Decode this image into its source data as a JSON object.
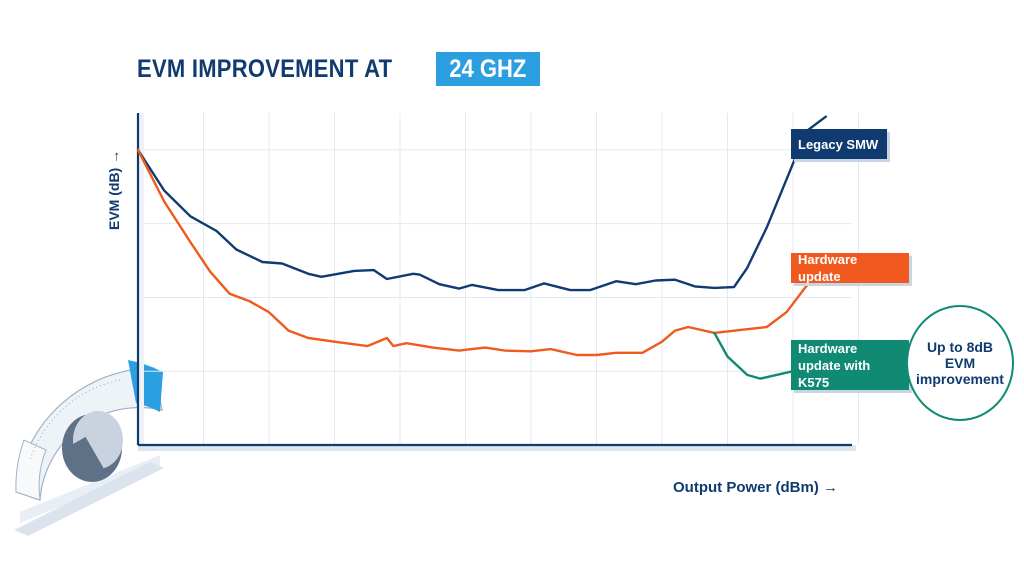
{
  "title": {
    "prefix": "EVM IMPROVEMENT AT",
    "highlight": "24 GHZ"
  },
  "colors": {
    "legacy": "#0f3b70",
    "hardware_update": "#f05a1e",
    "k575": "#118a74",
    "accent": "#2b9fe0",
    "grid": "#e3e9f1"
  },
  "icons": {
    "arrow": "→",
    "dial": "dial-knob-icon"
  },
  "callout": "Up to 8dB EVM improvement",
  "chart_data": {
    "type": "line",
    "title": "EVM IMPROVEMENT AT 24 GHZ",
    "xlabel": "Output Power (dBm)",
    "ylabel": "EVM (dB)",
    "xlim": [
      0,
      11
    ],
    "ylim": [
      0,
      4.5
    ],
    "grid": true,
    "axis_ticks_labeled": false,
    "series": [
      {
        "name": "Legacy SMW",
        "x": [
          0,
          0.4,
          0.8,
          1.2,
          1.5,
          1.9,
          2.2,
          2.6,
          2.8,
          3.3,
          3.6,
          3.8,
          4.2,
          4.3,
          4.6,
          4.9,
          5.1,
          5.5,
          5.9,
          6.2,
          6.6,
          6.9,
          7.3,
          7.6,
          7.9,
          8.2,
          8.5,
          8.8,
          9.1,
          9.3,
          9.6,
          9.9,
          10.2,
          10.5
        ],
        "values": [
          4.0,
          3.45,
          3.1,
          2.9,
          2.65,
          2.48,
          2.46,
          2.32,
          2.28,
          2.36,
          2.37,
          2.25,
          2.32,
          2.31,
          2.18,
          2.12,
          2.17,
          2.1,
          2.1,
          2.19,
          2.1,
          2.1,
          2.22,
          2.18,
          2.23,
          2.24,
          2.15,
          2.13,
          2.14,
          2.4,
          2.95,
          3.6,
          4.25,
          4.45
        ]
      },
      {
        "name": "Hardware update",
        "x": [
          0,
          0.4,
          0.8,
          1.1,
          1.4,
          1.7,
          2.0,
          2.3,
          2.6,
          3.0,
          3.5,
          3.8,
          3.9,
          4.1,
          4.5,
          4.9,
          5.3,
          5.6,
          6.0,
          6.3,
          6.7,
          7.0,
          7.3,
          7.7,
          8.0,
          8.2,
          8.4,
          8.8,
          9.2,
          9.6,
          9.9,
          10.2,
          10.5
        ],
        "values": [
          4.0,
          3.3,
          2.75,
          2.35,
          2.05,
          1.95,
          1.8,
          1.55,
          1.45,
          1.4,
          1.34,
          1.45,
          1.34,
          1.38,
          1.32,
          1.28,
          1.32,
          1.28,
          1.27,
          1.3,
          1.22,
          1.22,
          1.25,
          1.25,
          1.4,
          1.55,
          1.6,
          1.52,
          1.56,
          1.6,
          1.8,
          2.15,
          2.45
        ]
      },
      {
        "name": "Hardware update with K575",
        "x": [
          8.8,
          9.0,
          9.3,
          9.5,
          10.0,
          10.5
        ],
        "values": [
          1.52,
          1.2,
          0.95,
          0.9,
          1.0,
          1.18
        ]
      }
    ],
    "annotations": [
      "Up to 8dB EVM improvement"
    ]
  }
}
